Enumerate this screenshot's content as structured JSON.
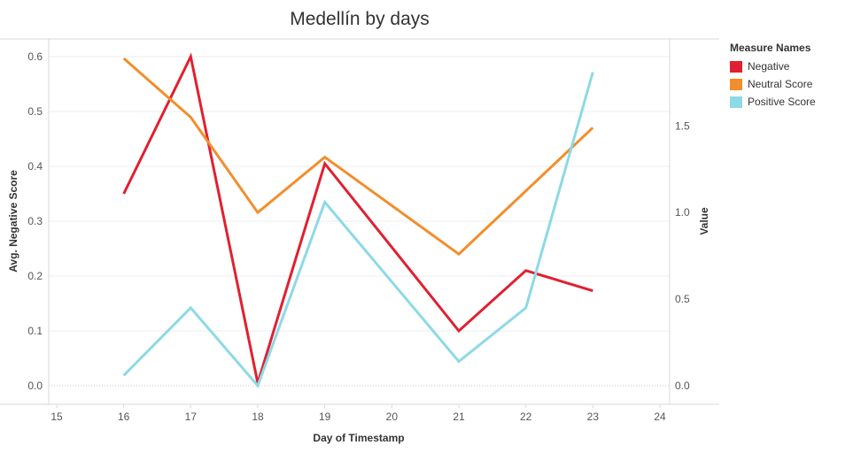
{
  "chart_data": {
    "type": "line",
    "title": "Medellín by days",
    "xlabel": "Day of Timestamp",
    "ylabel_left": "Avg. Negative Score",
    "ylabel_right": "Value",
    "x_ticks": [
      15,
      16,
      17,
      18,
      19,
      20,
      21,
      22,
      23,
      24
    ],
    "xlim": [
      15,
      24
    ],
    "ylim_left": [
      0,
      0.6
    ],
    "ylim_right": [
      0,
      1.9
    ],
    "y_ticks_left": [
      0.0,
      0.1,
      0.2,
      0.3,
      0.4,
      0.5,
      0.6
    ],
    "y_ticks_right": [
      0.0,
      0.5,
      1.0,
      1.5
    ],
    "series": [
      {
        "name": "Negative",
        "axis": "left",
        "color": "#e02030",
        "x": [
          16,
          17,
          18,
          19,
          21,
          22,
          23
        ],
        "values": [
          0.35,
          0.6,
          0.005,
          0.405,
          0.1,
          0.21,
          0.173
        ]
      },
      {
        "name": "Neutral Score",
        "axis": "right",
        "color": "#f28e2b",
        "x": [
          16,
          17,
          18,
          19,
          21,
          23
        ],
        "values": [
          1.89,
          1.55,
          1.0,
          1.32,
          0.76,
          1.49
        ]
      },
      {
        "name": "Positive Score",
        "axis": "right",
        "color": "#8dd9e6",
        "x": [
          16,
          17,
          18,
          19,
          21,
          22,
          23
        ],
        "values": [
          0.06,
          0.45,
          0.0,
          1.06,
          0.14,
          0.45,
          1.81
        ]
      }
    ],
    "legend": {
      "title": "Measure Names",
      "position": "right"
    }
  }
}
